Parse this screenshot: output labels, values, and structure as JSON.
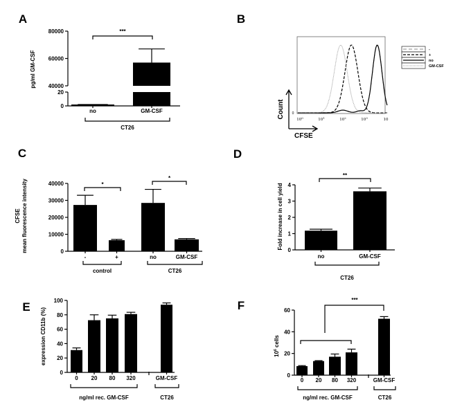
{
  "chart_data": [
    {
      "panel": "A",
      "type": "bar",
      "ylabel": "pg/ml GM-CSF",
      "categories": [
        "no",
        "GM-CSF"
      ],
      "values": [
        2,
        57000
      ],
      "errors": [
        2,
        67000
      ],
      "y_axis_break": {
        "lower": [
          0,
          20
        ],
        "upper": [
          40000,
          80000
        ]
      },
      "yticks": [
        "0",
        "20",
        "40000",
        "60000",
        "80000"
      ],
      "significance": [
        {
          "from": "no",
          "to": "GM-CSF",
          "label": "***"
        }
      ],
      "groups": [
        {
          "label": "CT26",
          "members": [
            "no",
            "GM-CSF"
          ]
        }
      ]
    },
    {
      "panel": "B",
      "type": "histogram",
      "xlabel": "CFSE",
      "ylabel": "Count",
      "xscale": "log",
      "xticks": [
        {
          "base": "10",
          "exp": "0"
        },
        {
          "base": "10",
          "exp": "1"
        },
        {
          "base": "10",
          "exp": "2"
        },
        {
          "base": "10",
          "exp": "3"
        },
        {
          "base": "10",
          "exp": ""
        }
      ],
      "ytick": "0",
      "series": [
        {
          "name": "-",
          "style": "dashed-gray",
          "color": "#888888",
          "peak_log10": 3.6
        },
        {
          "name": "+",
          "style": "dashed-black",
          "color": "#000000",
          "peak_log10": 2.4
        },
        {
          "name": "no",
          "style": "solid-black",
          "color": "#000000",
          "peak_log10": 3.6
        },
        {
          "name": "GM-CSF",
          "style": "dotted",
          "color": "#999999",
          "peak_log10": 1.9
        }
      ]
    },
    {
      "panel": "C",
      "type": "bar",
      "ylabel": [
        "CFSE",
        "mean fluorescence intensity"
      ],
      "categories": [
        "-",
        "+",
        "no",
        "GM-CSF"
      ],
      "values": [
        27300,
        6500,
        28500,
        7000
      ],
      "errors": [
        33000,
        7000,
        36500,
        7500
      ],
      "ylim": [
        0,
        40000
      ],
      "yticks": [
        "0",
        "10000",
        "20000",
        "30000",
        "40000"
      ],
      "significance": [
        {
          "from": "-",
          "to": "+",
          "label": "*"
        },
        {
          "from": "no",
          "to": "GM-CSF",
          "label": "*"
        }
      ],
      "groups": [
        {
          "label": "control",
          "members": [
            "-",
            "+"
          ]
        },
        {
          "label": "CT26",
          "members": [
            "no",
            "GM-CSF"
          ]
        }
      ]
    },
    {
      "panel": "D",
      "type": "bar",
      "ylabel": "Fold increase in cell yield",
      "categories": [
        "no",
        "GM-CSF"
      ],
      "values": [
        1.18,
        3.6
      ],
      "errors": [
        1.27,
        3.8
      ],
      "ylim": [
        0,
        4
      ],
      "yticks": [
        "0",
        "1",
        "2",
        "3",
        "4"
      ],
      "significance": [
        {
          "from": "no",
          "to": "GM-CSF",
          "label": "**"
        }
      ],
      "groups": [
        {
          "label": "CT26",
          "members": [
            "no",
            "GM-CSF"
          ]
        }
      ]
    },
    {
      "panel": "E",
      "type": "bar",
      "ylabel": "expression CD11b (%)",
      "categories": [
        "0",
        "20",
        "80",
        "320",
        "GM-CSF"
      ],
      "values": [
        31,
        72.5,
        75,
        81,
        94
      ],
      "errors": [
        34,
        80,
        79.5,
        83.5,
        96.5
      ],
      "ylim": [
        0,
        100
      ],
      "yticks": [
        "0",
        "20",
        "40",
        "60",
        "80",
        "100"
      ],
      "significance": [],
      "groups": [
        {
          "label": "ng/ml rec. GM-CSF",
          "members": [
            "0",
            "20",
            "80",
            "320"
          ]
        },
        {
          "label": "CT26",
          "members": [
            "GM-CSF"
          ]
        }
      ]
    },
    {
      "panel": "F",
      "type": "bar",
      "ylabel": {
        "base": "10",
        "exp": "6",
        "rest": " cells"
      },
      "categories": [
        "0",
        "20",
        "80",
        "320",
        "GM-CSF"
      ],
      "values": [
        8.3,
        13,
        17,
        21,
        52
      ],
      "errors": [
        8.8,
        13.4,
        19.5,
        24,
        54
      ],
      "ylim": [
        0,
        60
      ],
      "yticks": [
        "0",
        "20",
        "40",
        "60"
      ],
      "significance": [
        {
          "from": "0-320",
          "to": "GM-CSF",
          "label": "***"
        }
      ],
      "groups": [
        {
          "label": "ng/ml rec. GM-CSF",
          "members": [
            "0",
            "20",
            "80",
            "320"
          ]
        },
        {
          "label": "CT26",
          "members": [
            "GM-CSF"
          ]
        }
      ]
    }
  ]
}
